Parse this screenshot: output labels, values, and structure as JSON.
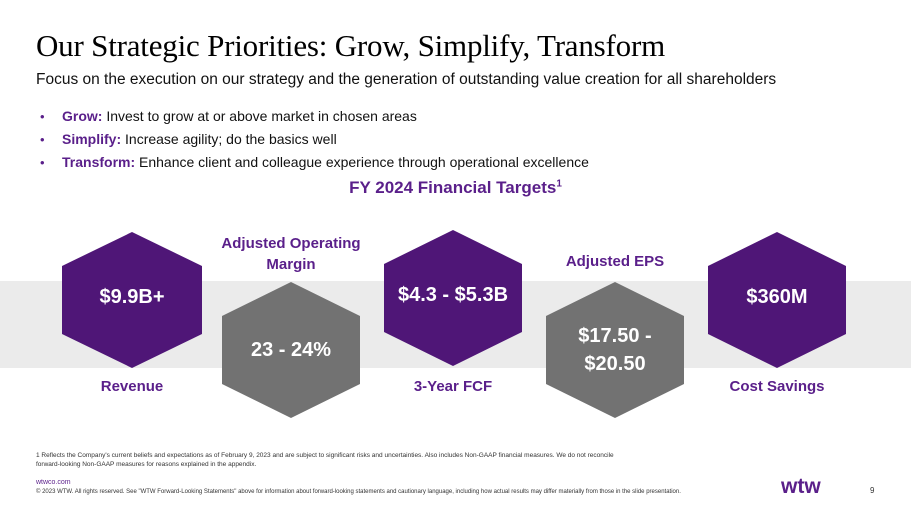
{
  "title": "Our Strategic Priorities: Grow, Simplify, Transform",
  "subtitle": "Focus on the execution on our strategy and the generation of outstanding value creation for all shareholders",
  "bullets": [
    {
      "marker": "•",
      "term": "Grow:",
      "text": " Invest to grow at or above market in chosen areas"
    },
    {
      "marker": "•",
      "term": "Simplify:",
      "text": " Increase agility; do the basics well"
    },
    {
      "marker": "•",
      "term": "Transform:",
      "text": " Enhance client and colleague experience through operational excellence"
    }
  ],
  "targets": {
    "title": "FY 2024 Financial Targets",
    "footnote_ref": "1",
    "revenue": {
      "value": "$9.9B+",
      "label": "Revenue"
    },
    "margin": {
      "value": "23 - 24%",
      "label_line1": "Adjusted Operating",
      "label_line2": "Margin"
    },
    "fcf": {
      "value": "$4.3 - $5.3B",
      "label": "3-Year FCF"
    },
    "eps": {
      "value_line1": "$17.50 -",
      "value_line2": "$20.50",
      "label": "Adjusted EPS"
    },
    "savings": {
      "value": "$360M",
      "label": "Cost Savings"
    }
  },
  "colors": {
    "purple": "#4f1677",
    "gray": "#727272",
    "band": "#ebebeb",
    "accent_text": "#5a1f8a"
  },
  "footnote_line1": "1 Reflects the Company's current beliefs and expectations as of February 9, 2023 and are subject to significant risks and uncertainties. Also includes Non-GAAP financial measures. We do not reconcile",
  "footnote_line2": "forward-looking Non-GAAP measures for reasons explained in the appendix.",
  "footer": {
    "link": "wtwco.com",
    "copyright": "© 2023 WTW. All rights reserved. See \"WTW Forward-Looking Statements\" above for information about forward-looking statements and cautionary language, including how actual results may differ materially from those in the slide presentation.",
    "logo": "wtw",
    "page": "9"
  }
}
